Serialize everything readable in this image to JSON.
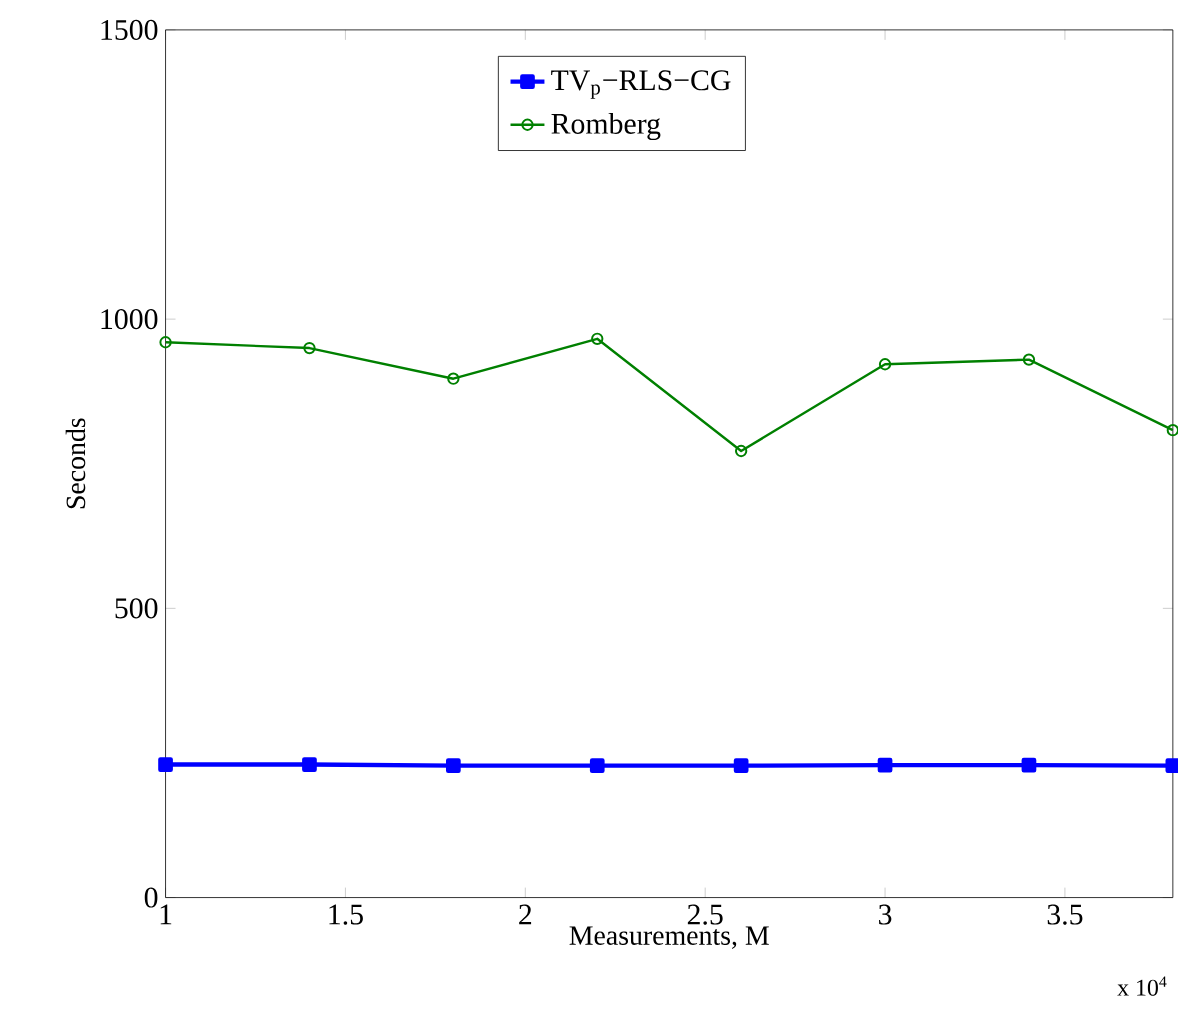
{
  "chart_data": {
    "type": "line",
    "xlabel": "Measurements, M",
    "ylabel": "Seconds",
    "x": [
      1,
      1.4,
      1.8,
      2.2,
      2.6,
      3.0,
      3.4,
      3.8
    ],
    "series": [
      {
        "name": "TV$_{p}$−RLS−CG",
        "color": "#0000ff",
        "marker": "square",
        "values": [
          230,
          230,
          228,
          228,
          228,
          229,
          229,
          228
        ]
      },
      {
        "name": "Romberg",
        "color": "#008000",
        "marker": "circle",
        "values": [
          960,
          950,
          897,
          966,
          772,
          922,
          930,
          808
        ]
      }
    ],
    "xlim": [
      1,
      3.8
    ],
    "xticks": [
      1,
      1.5,
      2,
      2.5,
      3,
      3.5
    ],
    "ylim": [
      0,
      1500
    ],
    "yticks": [
      0,
      500,
      1000,
      1500
    ],
    "annotations": [
      "x 10$^{4}$"
    ],
    "legend": "top",
    "grid": false,
    "line_style": "solid"
  }
}
